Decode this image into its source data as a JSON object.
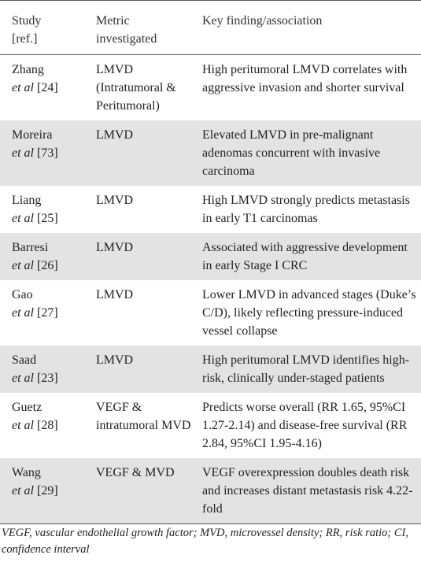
{
  "table": {
    "header": [
      "Study [ref.]",
      "Metric investigated",
      "Key finding/association"
    ],
    "rows": [
      {
        "name": "Zhang",
        "et_al": "et al",
        "ref": "[24]",
        "metric": "LMVD (Intratumoral & Peritumoral)",
        "finding": "High peritumoral LMVD correlates with aggressive invasion and shorter survival"
      },
      {
        "name": "Moreira",
        "et_al": "et al",
        "ref": "[73]",
        "metric": "LMVD",
        "finding": "Elevated LMVD in pre-malignant adenomas concurrent with invasive carcinoma"
      },
      {
        "name": "Liang",
        "et_al": "et al",
        "ref": "[25]",
        "metric": "LMVD",
        "finding": "High LMVD strongly predicts metastasis in early T1 carcinomas"
      },
      {
        "name": "Barresi",
        "et_al": "et al",
        "ref": "[26]",
        "metric": "LMVD",
        "finding": "Associated with aggressive development in early Stage I CRC"
      },
      {
        "name": "Gao",
        "et_al": "et al",
        "ref": "[27]",
        "metric": "LMVD",
        "finding": "Lower LMVD in advanced stages (Duke’s C/D), likely reflecting pressure-induced vessel collapse"
      },
      {
        "name": "Saad",
        "et_al": "et al",
        "ref": "[23]",
        "metric": "LMVD",
        "finding": "High peritumoral LMVD identifies high-risk, clinically under-staged patients"
      },
      {
        "name": "Guetz",
        "et_al": "et al",
        "ref": "[28]",
        "metric": "VEGF & intratumoral MVD",
        "finding": "Predicts worse overall (RR 1.65, 95%CI 1.27-2.14) and disease-free survival (RR 2.84, 95%CI 1.95-4.16)"
      },
      {
        "name": "Wang",
        "et_al": "et al",
        "ref": "[29]",
        "metric": "VEGF & MVD",
        "finding": "VEGF overexpression doubles death risk and increases distant metastasis risk 4.22-fold"
      }
    ],
    "footnote": "VEGF, vascular endothelial growth factor; MVD, microvessel density; RR, risk ratio; CI, confidence interval"
  }
}
